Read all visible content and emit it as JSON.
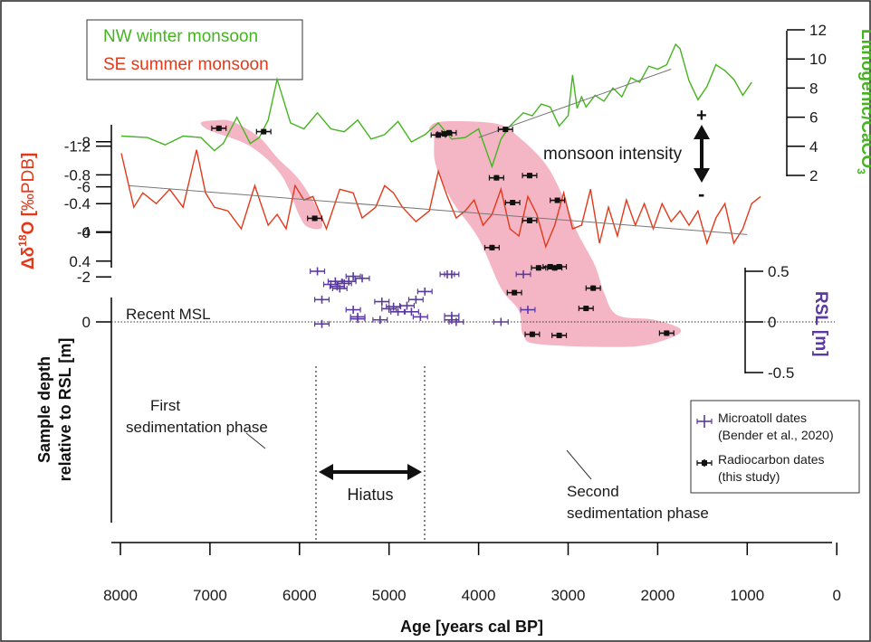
{
  "chart_data": {
    "type": "scatter",
    "xlabel": "Age [years cal BP]",
    "x_ticks": [
      8000,
      7000,
      6000,
      5000,
      4000,
      3000,
      2000,
      1000,
      0
    ],
    "xlim": [
      8000,
      0
    ],
    "colors": {
      "winter": "#44b51f",
      "summer": "#e3391a",
      "rsl": "#5a3aa0",
      "radiocarbon": "#111111",
      "phase_fill": "#f2a9bb",
      "trend": "#777777"
    },
    "legend_top": [
      {
        "key": "winter",
        "label": "NW winter monsoon"
      },
      {
        "key": "summer",
        "label": "SE summer monsoon"
      }
    ],
    "lithogenic_axis": {
      "label_main": "Lithogenic/CaCO",
      "label_sub": "3",
      "ticks": [
        2,
        4,
        6,
        8,
        10,
        12
      ],
      "ylim": [
        2,
        12
      ]
    },
    "d18o_axis": {
      "label_prefix": "Δδ",
      "label_sup": "18",
      "label_main": "O [",
      "label_unit": "‰PDB",
      "label_end": "]",
      "ticks": [
        "-1.2",
        "-0.8",
        "-0.4",
        "0",
        "0.4"
      ],
      "tick_values": [
        -1.2,
        -0.8,
        -0.4,
        0,
        0.4
      ]
    },
    "rsl_axis": {
      "label": "RSL [m]",
      "ticks": [
        "0.5",
        "0",
        "-0.5"
      ],
      "tick_values": [
        0.5,
        0,
        -0.5
      ]
    },
    "depth_axis": {
      "label_line1": "Sample depth",
      "label_line2": "relative to RSL [m]",
      "ticks": [
        "0",
        "-2",
        "-4",
        "-6",
        "-8"
      ],
      "tick_values": [
        0,
        -2,
        -4,
        -6,
        -8
      ]
    },
    "annotations": {
      "monsoon_intensity": "monsoon intensity",
      "plus": "+",
      "minus": "-",
      "recent_msl": "Recent MSL",
      "hiatus": "Hiatus",
      "first_phase_line1": "First",
      "first_phase_line2": "sedimentation phase",
      "second_phase_line1": "Second",
      "second_phase_line2": "sedimentation phase"
    },
    "legend_bottom": [
      {
        "key": "rsl",
        "line1": "Microatoll dates",
        "line2": "(Bender et al., 2020)"
      },
      {
        "key": "radiocarbon",
        "line1": "Radiocarbon dates",
        "line2": "(this study)"
      }
    ],
    "winter_monsoon_series": {
      "x": [
        7990,
        7700,
        7500,
        7300,
        7100,
        6950,
        6850,
        6700,
        6550,
        6450,
        6350,
        6250,
        6100,
        5950,
        5800,
        5650,
        5500,
        5350,
        5200,
        5050,
        4900,
        4750,
        4600,
        4450,
        4300,
        4150,
        4000,
        3850,
        3750,
        3650,
        3500,
        3400,
        3300,
        3200,
        3100,
        3000,
        2950,
        2900,
        2850,
        2800,
        2700,
        2600,
        2500,
        2400,
        2300,
        2200,
        2100,
        2000,
        1900,
        1800,
        1750,
        1650,
        1550,
        1450,
        1350,
        1250,
        1150,
        1050,
        950
      ],
      "y": [
        4.7,
        4.6,
        4.1,
        4.7,
        4.6,
        3.7,
        4.2,
        6.0,
        4.2,
        4.6,
        5.8,
        8.6,
        5.6,
        5.2,
        6.3,
        5.2,
        5.0,
        5.8,
        4.5,
        4.8,
        5.7,
        4.3,
        4.8,
        5.6,
        4.5,
        4.6,
        5.2,
        2.6,
        4.5,
        5.4,
        6.3,
        6.1,
        6.9,
        6.7,
        5.4,
        6.1,
        8.9,
        6.6,
        7.4,
        6.7,
        7.5,
        7.1,
        8.0,
        7.4,
        8.7,
        8.4,
        9.5,
        9.3,
        9.6,
        11.0,
        10.7,
        8.5,
        7.2,
        8.1,
        9.6,
        9.2,
        8.6,
        7.5,
        8.4
      ]
    },
    "summer_monsoon_series": {
      "x": [
        7990,
        7850,
        7750,
        7600,
        7450,
        7300,
        7150,
        7050,
        6950,
        6800,
        6650,
        6500,
        6350,
        6250,
        6150,
        6050,
        5950,
        5850,
        5700,
        5550,
        5400,
        5300,
        5150,
        5050,
        4950,
        4850,
        4700,
        4550,
        4450,
        4350,
        4250,
        4150,
        4050,
        3950,
        3850,
        3750,
        3650,
        3550,
        3450,
        3350,
        3250,
        3150,
        3050,
        2950,
        2850,
        2750,
        2650,
        2550,
        2450,
        2350,
        2250,
        2150,
        2050,
        1950,
        1850,
        1750,
        1650,
        1550,
        1450,
        1350,
        1250,
        1150,
        1050,
        950,
        850
      ],
      "y": [
        -1.1,
        -0.35,
        -0.55,
        -0.4,
        -0.6,
        -0.35,
        -1.15,
        -0.55,
        -0.35,
        -0.3,
        -0.05,
        -0.65,
        -0.1,
        -0.25,
        -0.05,
        -0.65,
        -0.45,
        -0.5,
        -0.05,
        -0.6,
        -0.55,
        -0.2,
        -0.35,
        -0.65,
        -0.55,
        -0.35,
        -0.15,
        -0.3,
        -0.85,
        -0.5,
        -0.2,
        -0.3,
        -0.45,
        -0.1,
        -0.25,
        -0.6,
        -0.05,
        0.05,
        -0.5,
        -0.25,
        0.2,
        -0.1,
        -0.55,
        -0.05,
        -0.1,
        -0.6,
        0.15,
        -0.35,
        0.05,
        -0.45,
        -0.1,
        -0.4,
        -0.05,
        -0.4,
        -0.15,
        -0.3,
        -0.1,
        -0.3,
        0.15,
        -0.2,
        -0.4,
        0.15,
        -0.05,
        -0.4,
        -0.5
      ]
    },
    "winter_trend": {
      "x": [
        4000,
        1850
      ],
      "y": [
        4.6,
        9.3
      ]
    },
    "summer_trend": {
      "x": [
        7900,
        1000
      ],
      "y": [
        -0.65,
        0.03
      ]
    },
    "microatoll_dates": {
      "x": [
        5800,
        5750,
        5750,
        5650,
        5600,
        5580,
        5550,
        5500,
        5450,
        5400,
        5400,
        5350,
        5350,
        5300,
        5100,
        5080,
        5000,
        4950,
        4900,
        4800,
        4750,
        4700,
        4600,
        4650,
        4350,
        4300,
        4300,
        4250,
        4300,
        3750,
        3500,
        3450
      ],
      "y": [
        0.5,
        0.22,
        -0.02,
        0.37,
        0.4,
        0.35,
        0.33,
        0.38,
        0.4,
        0.45,
        0.12,
        0.03,
        0.05,
        0.43,
        0.02,
        0.2,
        0.13,
        0.15,
        0.1,
        0.16,
        0.1,
        0.22,
        0.3,
        0.05,
        0.47,
        0.47,
        0.06,
        0.0,
        0.02,
        0.0,
        0.47,
        0.12
      ],
      "x_err": 80,
      "y_err": 0.04
    },
    "radiocarbon_dates": {
      "x": [
        6900,
        6400,
        5830,
        4450,
        4380,
        4330,
        3850,
        3800,
        3700,
        3620,
        3600,
        3430,
        3430,
        3400,
        3330,
        3200,
        3150,
        3120,
        3100,
        3100,
        2800,
        2720,
        1900
      ],
      "y": [
        -8.6,
        -8.45,
        -4.6,
        -8.3,
        -8.35,
        -8.4,
        -3.3,
        -6.4,
        -8.55,
        -5.3,
        -1.3,
        -4.5,
        -6.5,
        0.55,
        -2.4,
        -2.45,
        -2.4,
        -5.4,
        -2.45,
        0.6,
        -0.6,
        -1.5,
        0.5
      ],
      "x_err": 80,
      "y_err": 0.12
    },
    "phase_regions": [
      {
        "name": "first",
        "outline": [
          [
            6950,
            -8.95
          ],
          [
            6750,
            -8.9
          ],
          [
            6450,
            -8.2
          ],
          [
            6250,
            -7.3
          ],
          [
            6000,
            -6.3
          ],
          [
            5800,
            -5.0
          ],
          [
            5750,
            -4.2
          ],
          [
            5900,
            -4.2
          ],
          [
            6000,
            -4.7
          ],
          [
            6200,
            -6.5
          ],
          [
            6550,
            -7.8
          ],
          [
            7000,
            -8.5
          ],
          [
            7100,
            -8.85
          ]
        ]
      },
      {
        "name": "second",
        "outline": [
          [
            4500,
            -8.2
          ],
          [
            4480,
            -7.0
          ],
          [
            4300,
            -5.4
          ],
          [
            4000,
            -3.7
          ],
          [
            3750,
            -1.5
          ],
          [
            3550,
            -0.5
          ],
          [
            3500,
            0.6
          ],
          [
            3300,
            1.0
          ],
          [
            2300,
            1.1
          ],
          [
            1850,
            0.7
          ],
          [
            1750,
            0.3
          ],
          [
            2050,
            -0.1
          ],
          [
            2450,
            -0.3
          ],
          [
            2600,
            -1.3
          ],
          [
            2700,
            -2.5
          ],
          [
            2900,
            -4.0
          ],
          [
            3050,
            -5.5
          ],
          [
            3250,
            -7.0
          ],
          [
            3550,
            -8.2
          ],
          [
            3800,
            -8.8
          ],
          [
            4400,
            -8.9
          ],
          [
            4550,
            -8.6
          ]
        ]
      }
    ]
  }
}
